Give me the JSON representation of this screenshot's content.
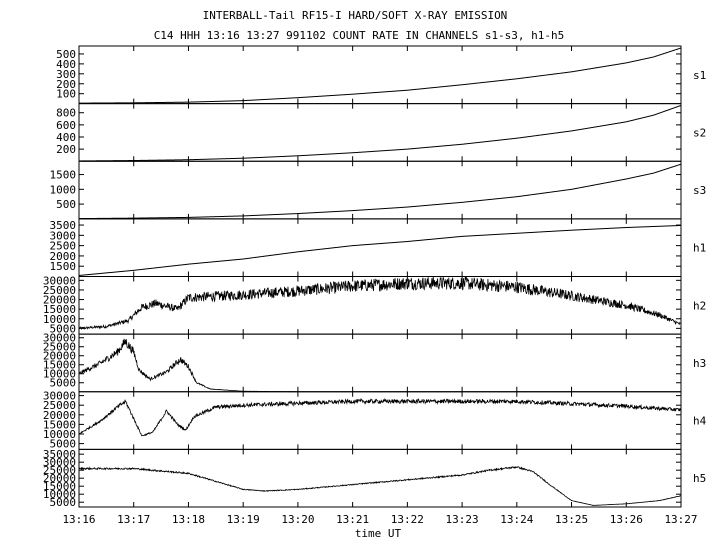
{
  "chart_data": {
    "type": "line",
    "title": "INTERBALL-Tail RF15-I HARD/SOFT X-RAY EMISSION",
    "subtitle": "C14 HHH 13:16 13:27 991102  COUNT RATE IN CHANNELS s1-s3, h1-h5",
    "xlabel": "time UT",
    "x_ticks": [
      "13:16",
      "13:17",
      "13:18",
      "13:19",
      "13:20",
      "13:21",
      "13:22",
      "13:23",
      "13:24",
      "13:25",
      "13:26",
      "13:27"
    ],
    "xlim_minutes": [
      0,
      11
    ],
    "panels": [
      {
        "name": "s1",
        "ylim": [
          0,
          580
        ],
        "yticks": [
          100,
          200,
          300,
          400,
          500
        ],
        "ytick_labels": [
          "100",
          "200",
          "300",
          "400",
          "500"
        ],
        "noise": 0,
        "points": [
          [
            0,
            5
          ],
          [
            1,
            8
          ],
          [
            2,
            15
          ],
          [
            3,
            30
          ],
          [
            4,
            60
          ],
          [
            5,
            95
          ],
          [
            6,
            135
          ],
          [
            7,
            190
          ],
          [
            8,
            250
          ],
          [
            9,
            320
          ],
          [
            10,
            410
          ],
          [
            10.5,
            470
          ],
          [
            11,
            560
          ]
        ]
      },
      {
        "name": "s2",
        "ylim": [
          0,
          950
        ],
        "yticks": [
          200,
          400,
          600,
          800
        ],
        "ytick_labels": [
          "200",
          "400",
          "600",
          "800"
        ],
        "noise": 0,
        "points": [
          [
            0,
            5
          ],
          [
            1,
            12
          ],
          [
            2,
            25
          ],
          [
            3,
            50
          ],
          [
            4,
            90
          ],
          [
            5,
            140
          ],
          [
            6,
            200
          ],
          [
            7,
            280
          ],
          [
            8,
            380
          ],
          [
            9,
            500
          ],
          [
            10,
            650
          ],
          [
            10.5,
            760
          ],
          [
            11,
            920
          ]
        ]
      },
      {
        "name": "s3",
        "ylim": [
          0,
          1950
        ],
        "yticks": [
          500,
          1000,
          1500
        ],
        "ytick_labels": [
          "500",
          "1000",
          "1500"
        ],
        "noise": 0,
        "points": [
          [
            0,
            10
          ],
          [
            1,
            25
          ],
          [
            2,
            50
          ],
          [
            3,
            100
          ],
          [
            4,
            180
          ],
          [
            5,
            280
          ],
          [
            6,
            400
          ],
          [
            7,
            560
          ],
          [
            8,
            750
          ],
          [
            9,
            1000
          ],
          [
            10,
            1350
          ],
          [
            10.5,
            1550
          ],
          [
            11,
            1850
          ]
        ]
      },
      {
        "name": "h1",
        "ylim": [
          1000,
          3800
        ],
        "yticks": [
          1500,
          2000,
          2500,
          3000,
          3500
        ],
        "ytick_labels": [
          "1500",
          "2000",
          "2500",
          "3000",
          "3500"
        ],
        "noise": 0,
        "points": [
          [
            0,
            1050
          ],
          [
            1,
            1300
          ],
          [
            2,
            1600
          ],
          [
            3,
            1850
          ],
          [
            4,
            2200
          ],
          [
            5,
            2500
          ],
          [
            6,
            2700
          ],
          [
            7,
            2950
          ],
          [
            8,
            3100
          ],
          [
            9,
            3250
          ],
          [
            10,
            3380
          ],
          [
            11,
            3480
          ]
        ]
      },
      {
        "name": "h2",
        "ylim": [
          2000,
          32000
        ],
        "yticks": [
          5000,
          10000,
          15000,
          20000,
          25000,
          30000
        ],
        "ytick_labels": [
          "5000",
          "10000",
          "15000",
          "20000",
          "25000",
          "30000"
        ],
        "noise": 0.12,
        "points": [
          [
            0,
            5000
          ],
          [
            0.5,
            6000
          ],
          [
            0.9,
            9000
          ],
          [
            1.15,
            16000
          ],
          [
            1.4,
            18000
          ],
          [
            1.8,
            15000
          ],
          [
            2.0,
            21000
          ],
          [
            3,
            22500
          ],
          [
            4,
            24500
          ],
          [
            5,
            27000
          ],
          [
            6,
            28500
          ],
          [
            7,
            28500
          ],
          [
            8,
            26500
          ],
          [
            9,
            22000
          ],
          [
            10,
            17000
          ],
          [
            10.6,
            12000
          ],
          [
            11,
            7000
          ]
        ]
      },
      {
        "name": "h3",
        "ylim": [
          0,
          32000
        ],
        "yticks": [
          5000,
          10000,
          15000,
          20000,
          25000,
          30000
        ],
        "ytick_labels": [
          "5000",
          "10000",
          "15000",
          "20000",
          "25000",
          "30000"
        ],
        "noise": 0.1,
        "points": [
          [
            0,
            10000
          ],
          [
            0.4,
            16000
          ],
          [
            0.7,
            22000
          ],
          [
            0.85,
            28000
          ],
          [
            1.0,
            22000
          ],
          [
            1.1,
            12000
          ],
          [
            1.3,
            7000
          ],
          [
            1.6,
            11000
          ],
          [
            1.85,
            18000
          ],
          [
            2.0,
            14000
          ],
          [
            2.15,
            5000
          ],
          [
            2.4,
            1500
          ],
          [
            3,
            300
          ],
          [
            4,
            0
          ],
          [
            11,
            0
          ]
        ]
      },
      {
        "name": "h4",
        "ylim": [
          2000,
          32000
        ],
        "yticks": [
          5000,
          10000,
          15000,
          20000,
          25000,
          30000
        ],
        "ytick_labels": [
          "5000",
          "10000",
          "15000",
          "20000",
          "25000",
          "30000"
        ],
        "noise": 0.04,
        "points": [
          [
            0,
            10000
          ],
          [
            0.4,
            17000
          ],
          [
            0.7,
            24000
          ],
          [
            0.85,
            27000
          ],
          [
            1.0,
            18000
          ],
          [
            1.15,
            9000
          ],
          [
            1.35,
            11000
          ],
          [
            1.6,
            22000
          ],
          [
            1.8,
            15000
          ],
          [
            1.95,
            12000
          ],
          [
            2.1,
            19000
          ],
          [
            2.5,
            24000
          ],
          [
            3,
            25000
          ],
          [
            5,
            27000
          ],
          [
            8,
            27000
          ],
          [
            10,
            24500
          ],
          [
            11,
            22500
          ]
        ]
      },
      {
        "name": "h5",
        "ylim": [
          2000,
          38000
        ],
        "yticks": [
          5000,
          10000,
          15000,
          20000,
          25000,
          30000,
          35000
        ],
        "ytick_labels": [
          "5000",
          "10000",
          "15000",
          "20000",
          "25000",
          "30000",
          "35000"
        ],
        "noise": 0.02,
        "points": [
          [
            0,
            26000
          ],
          [
            1,
            26000
          ],
          [
            2,
            23000
          ],
          [
            2.6,
            17000
          ],
          [
            3,
            13000
          ],
          [
            3.4,
            12000
          ],
          [
            4,
            13000
          ],
          [
            5,
            16000
          ],
          [
            6,
            19000
          ],
          [
            7,
            22000
          ],
          [
            7.5,
            25000
          ],
          [
            8,
            27000
          ],
          [
            8.3,
            24000
          ],
          [
            8.6,
            16000
          ],
          [
            9,
            6000
          ],
          [
            9.4,
            3000
          ],
          [
            10,
            4000
          ],
          [
            10.6,
            6000
          ],
          [
            11,
            9000
          ]
        ]
      }
    ]
  }
}
